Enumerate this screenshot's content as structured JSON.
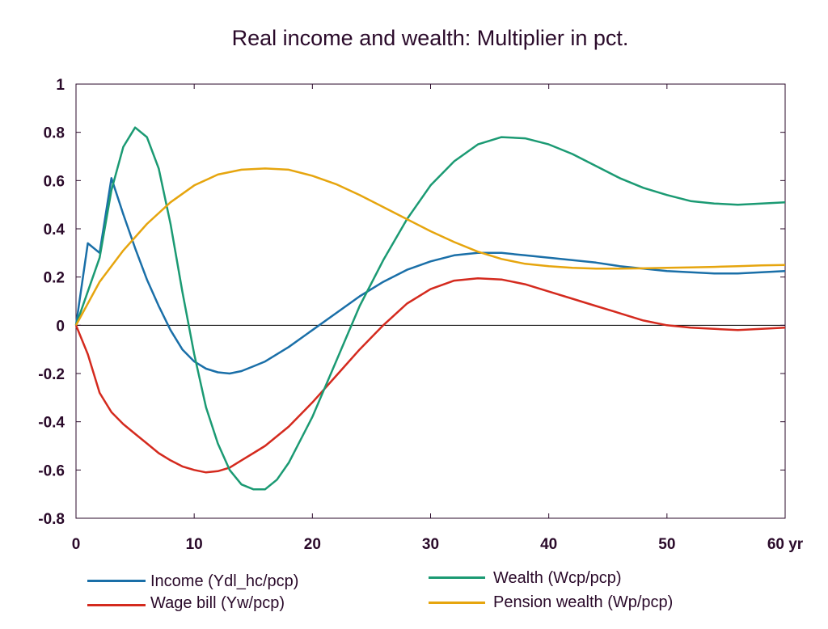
{
  "chart_data": {
    "type": "line",
    "title": "Real income and wealth: Multiplier in pct.",
    "xlabel": "",
    "ylabel": "",
    "x_tick_labels": [
      "0",
      "10",
      "20",
      "30",
      "40",
      "50",
      "60 yr"
    ],
    "x_ticks": [
      0,
      10,
      20,
      30,
      40,
      50,
      60
    ],
    "y_tick_labels": [
      "1",
      "0.8",
      "0.6",
      "0.4",
      "0.2",
      "0",
      "-0.2",
      "-0.4",
      "-0.6",
      "-0.8"
    ],
    "y_ticks": [
      1,
      0.8,
      0.6,
      0.4,
      0.2,
      0,
      -0.2,
      -0.4,
      -0.6,
      -0.8
    ],
    "xlim": [
      0,
      60
    ],
    "ylim": [
      -0.8,
      1
    ],
    "grid": false,
    "zero_line": true,
    "legend_position": "bottom",
    "series": [
      {
        "name": "Income (Ydl_hc/pcp)",
        "color": "#1a6fa8",
        "x": [
          0,
          1,
          2,
          3,
          4,
          5,
          6,
          7,
          8,
          9,
          10,
          11,
          12,
          13,
          14,
          15,
          16,
          18,
          20,
          22,
          24,
          26,
          28,
          30,
          32,
          34,
          36,
          38,
          40,
          42,
          44,
          46,
          48,
          50,
          52,
          54,
          56,
          58,
          60
        ],
        "y": [
          0,
          0.34,
          0.3,
          0.61,
          0.46,
          0.32,
          0.19,
          0.08,
          -0.02,
          -0.1,
          -0.15,
          -0.18,
          -0.195,
          -0.2,
          -0.19,
          -0.17,
          -0.15,
          -0.09,
          -0.02,
          0.05,
          0.12,
          0.18,
          0.23,
          0.265,
          0.29,
          0.3,
          0.3,
          0.29,
          0.28,
          0.27,
          0.26,
          0.245,
          0.235,
          0.225,
          0.22,
          0.215,
          0.215,
          0.22,
          0.225
        ]
      },
      {
        "name": "Wage bill (Yw/pcp)",
        "color": "#d42a1e",
        "x": [
          0,
          1,
          2,
          3,
          4,
          5,
          6,
          7,
          8,
          9,
          10,
          11,
          12,
          13,
          14,
          15,
          16,
          18,
          20,
          22,
          24,
          26,
          28,
          30,
          32,
          34,
          36,
          38,
          40,
          42,
          44,
          46,
          48,
          50,
          52,
          54,
          56,
          58,
          60
        ],
        "y": [
          0,
          -0.12,
          -0.28,
          -0.36,
          -0.41,
          -0.45,
          -0.49,
          -0.53,
          -0.56,
          -0.585,
          -0.6,
          -0.61,
          -0.605,
          -0.59,
          -0.56,
          -0.53,
          -0.5,
          -0.42,
          -0.32,
          -0.21,
          -0.1,
          0.0,
          0.09,
          0.15,
          0.185,
          0.195,
          0.19,
          0.17,
          0.14,
          0.11,
          0.08,
          0.05,
          0.02,
          0.0,
          -0.01,
          -0.015,
          -0.02,
          -0.015,
          -0.01
        ]
      },
      {
        "name": "Wealth (Wcp/pcp)",
        "color": "#1b9a73",
        "x": [
          0,
          1,
          2,
          3,
          4,
          5,
          6,
          7,
          8,
          9,
          10,
          11,
          12,
          13,
          14,
          15,
          16,
          17,
          18,
          20,
          22,
          24,
          26,
          28,
          30,
          32,
          34,
          36,
          38,
          40,
          42,
          44,
          46,
          48,
          50,
          52,
          54,
          56,
          58,
          60
        ],
        "y": [
          0,
          0.14,
          0.28,
          0.56,
          0.74,
          0.82,
          0.78,
          0.65,
          0.42,
          0.14,
          -0.12,
          -0.34,
          -0.49,
          -0.6,
          -0.66,
          -0.68,
          -0.68,
          -0.64,
          -0.57,
          -0.38,
          -0.15,
          0.08,
          0.27,
          0.44,
          0.58,
          0.68,
          0.75,
          0.78,
          0.775,
          0.75,
          0.71,
          0.66,
          0.61,
          0.57,
          0.54,
          0.515,
          0.505,
          0.5,
          0.505,
          0.51
        ]
      },
      {
        "name": "Pension wealth (Wp/pcp)",
        "color": "#e6a50e",
        "x": [
          0,
          2,
          4,
          6,
          8,
          10,
          12,
          14,
          16,
          18,
          20,
          22,
          24,
          26,
          28,
          30,
          32,
          34,
          36,
          38,
          40,
          42,
          44,
          46,
          48,
          50,
          52,
          54,
          56,
          58,
          60
        ],
        "y": [
          0,
          0.18,
          0.31,
          0.42,
          0.51,
          0.58,
          0.625,
          0.645,
          0.65,
          0.645,
          0.62,
          0.585,
          0.54,
          0.49,
          0.44,
          0.39,
          0.345,
          0.305,
          0.275,
          0.255,
          0.245,
          0.238,
          0.235,
          0.235,
          0.236,
          0.238,
          0.24,
          0.242,
          0.245,
          0.248,
          0.25
        ]
      }
    ]
  }
}
